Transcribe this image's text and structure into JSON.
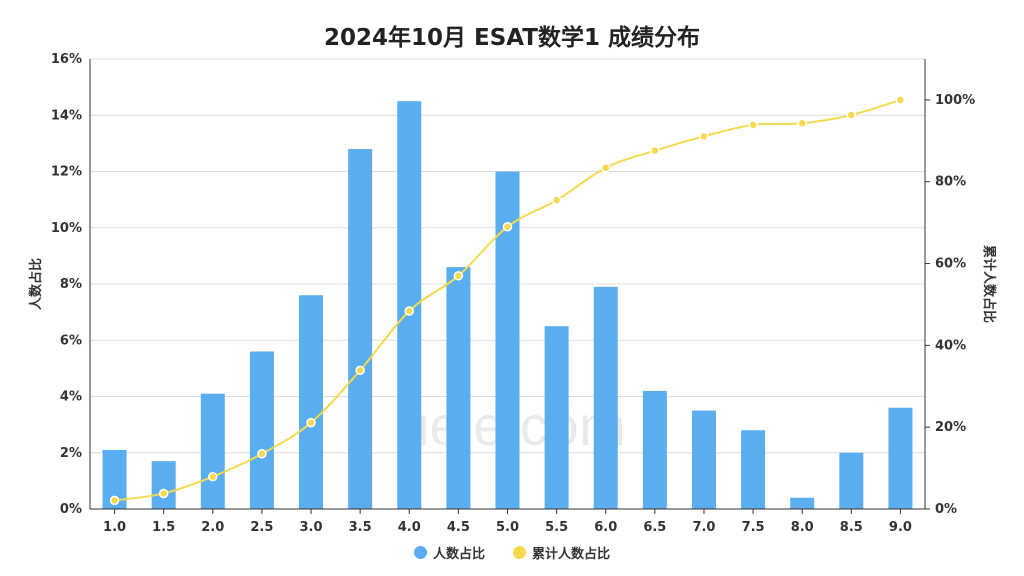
{
  "watermark": "ueie.com",
  "chart_data": {
    "type": "bar",
    "title": "2024年10月 ESAT数学1 成绩分布",
    "xlabel": "",
    "ylabel": "人数占比",
    "y2label": "累计人数占比",
    "categories": [
      "1.0",
      "1.5",
      "2.0",
      "2.5",
      "3.0",
      "3.5",
      "4.0",
      "4.5",
      "5.0",
      "5.5",
      "6.0",
      "6.5",
      "7.0",
      "7.5",
      "8.0",
      "8.5",
      "9.0"
    ],
    "ylim": [
      0,
      16
    ],
    "y2lim": [
      0,
      110
    ],
    "yticks": [
      "0%",
      "2%",
      "4%",
      "6%",
      "8%",
      "10%",
      "12%",
      "14%",
      "16%"
    ],
    "y2ticks": [
      "0%",
      "20%",
      "40%",
      "60%",
      "80%",
      "100%"
    ],
    "grid": true,
    "legend_position": "bottom",
    "series": [
      {
        "name": "人数占比",
        "type": "bar",
        "color": "#5aaef0",
        "values": [
          2.1,
          1.7,
          4.1,
          5.6,
          7.6,
          12.8,
          14.5,
          8.6,
          12.0,
          6.5,
          7.9,
          4.2,
          3.5,
          2.8,
          0.4,
          2.0,
          3.6
        ]
      },
      {
        "name": "累计人数占比",
        "type": "line",
        "color": "#f5d94e",
        "values": [
          2.1,
          3.8,
          7.9,
          13.5,
          21.1,
          33.9,
          48.4,
          57.0,
          69.0,
          75.5,
          83.4,
          87.6,
          91.1,
          93.9,
          94.3,
          96.3,
          100.0
        ]
      }
    ]
  }
}
